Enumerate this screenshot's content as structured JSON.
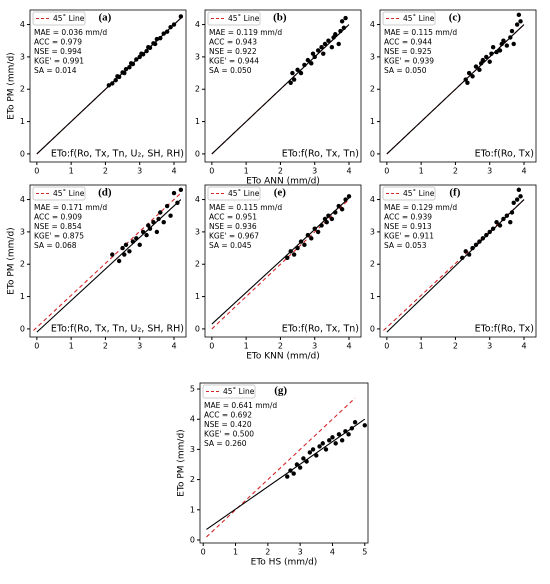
{
  "chart_data": [
    {
      "type": "scatter",
      "title": "(a)",
      "y_label": "ETo PM (mm/d)",
      "formula": "ETo:f(Ro, Tx, Tn, U₂, SH, RH)",
      "stats": [
        "MAE = 0.036 mm/d",
        "ACC = 0.979",
        "NSE = 0.994",
        "KGE' = 0.991",
        "SA = 0.014"
      ],
      "xlim": [
        -0.2,
        4.35
      ],
      "ylim": [
        -0.25,
        4.45
      ],
      "xticks": [
        0,
        1,
        2,
        3,
        4
      ],
      "yticks": [
        0,
        1,
        2,
        3,
        4
      ],
      "x": [
        2.1,
        2.2,
        2.3,
        2.35,
        2.4,
        2.5,
        2.55,
        2.6,
        2.7,
        2.75,
        2.8,
        2.9,
        3.0,
        3.05,
        3.1,
        3.2,
        3.25,
        3.3,
        3.4,
        3.45,
        3.5,
        3.6,
        3.7,
        3.8,
        3.9,
        4.0,
        4.2
      ],
      "y": [
        2.12,
        2.18,
        2.28,
        2.4,
        2.38,
        2.52,
        2.5,
        2.62,
        2.68,
        2.8,
        2.78,
        2.92,
        3.0,
        3.1,
        3.08,
        3.18,
        3.3,
        3.28,
        3.42,
        3.4,
        3.55,
        3.58,
        3.72,
        3.78,
        3.92,
        4.0,
        4.25
      ],
      "reference_line": {
        "name": "45˚ Line",
        "color": "#d62728",
        "x": [
          0,
          4.2
        ],
        "y": [
          0,
          4.2
        ]
      },
      "fit_line": {
        "color": "#000000",
        "x": [
          0,
          4.2
        ],
        "y": [
          0,
          4.2
        ]
      }
    },
    {
      "type": "scatter",
      "title": "(b)",
      "x_label": "ETo ANN (mm/d)",
      "formula": "ETo:f(Ro, Tx, Tn)",
      "stats": [
        "MAE = 0.119 mm/d",
        "ACC = 0.943",
        "NSE = 0.922",
        "KGE' = 0.944",
        "SA = 0.050"
      ],
      "xlim": [
        -0.2,
        4.35
      ],
      "ylim": [
        -0.25,
        4.45
      ],
      "xticks": [
        0,
        1,
        2,
        3,
        4
      ],
      "yticks": [
        0,
        1,
        2,
        3,
        4
      ],
      "x": [
        2.3,
        2.35,
        2.4,
        2.5,
        2.6,
        2.7,
        2.8,
        2.9,
        2.95,
        3.0,
        3.1,
        3.2,
        3.25,
        3.3,
        3.4,
        3.5,
        3.55,
        3.6,
        3.7,
        3.75,
        3.8,
        3.85,
        3.9
      ],
      "y": [
        2.2,
        2.5,
        2.3,
        2.6,
        2.5,
        2.75,
        2.9,
        2.8,
        3.1,
        3.0,
        3.2,
        3.3,
        3.1,
        3.4,
        3.5,
        3.3,
        3.6,
        3.7,
        3.4,
        3.8,
        4.1,
        3.9,
        4.2
      ],
      "reference_line": {
        "name": "45˚ Line",
        "color": "#d62728",
        "x": [
          0,
          4
        ],
        "y": [
          0,
          4
        ]
      },
      "fit_line": {
        "color": "#000000",
        "x": [
          0,
          4
        ],
        "y": [
          0,
          4
        ]
      }
    },
    {
      "type": "scatter",
      "title": "(c)",
      "formula": "ETo:f(Ro, Tx)",
      "stats": [
        "MAE = 0.115 mm/d",
        "ACC = 0.944",
        "NSE = 0.925",
        "KGE' = 0.939",
        "SA = 0.050"
      ],
      "xlim": [
        -0.2,
        4.35
      ],
      "ylim": [
        -0.25,
        4.45
      ],
      "xticks": [
        0,
        1,
        2,
        3,
        4
      ],
      "yticks": [
        0,
        1,
        2,
        3,
        4
      ],
      "x": [
        2.3,
        2.35,
        2.4,
        2.5,
        2.6,
        2.7,
        2.75,
        2.8,
        2.9,
        3.0,
        3.05,
        3.1,
        3.2,
        3.3,
        3.35,
        3.4,
        3.5,
        3.6,
        3.65,
        3.7,
        3.8,
        3.85,
        3.9
      ],
      "y": [
        2.3,
        2.2,
        2.5,
        2.4,
        2.7,
        2.6,
        2.8,
        2.9,
        3.0,
        2.85,
        3.1,
        3.3,
        3.15,
        3.2,
        3.4,
        3.5,
        3.35,
        3.6,
        3.8,
        3.4,
        4.0,
        4.3,
        4.1
      ],
      "reference_line": {
        "name": "45˚ Line",
        "color": "#d62728",
        "x": [
          0,
          4
        ],
        "y": [
          0,
          4
        ]
      },
      "fit_line": {
        "color": "#000000",
        "x": [
          0,
          4
        ],
        "y": [
          0,
          4
        ]
      }
    },
    {
      "type": "scatter",
      "title": "(d)",
      "y_label": "ETo PM (mm/d)",
      "formula": "ETo:f(Ro, Tx, Tn, U₂, SH, RH)",
      "stats": [
        "MAE = 0.171 mm/d",
        "ACC = 0.909",
        "NSE = 0.854",
        "KGE' = 0.875",
        "SA = 0.068"
      ],
      "xlim": [
        -0.2,
        4.35
      ],
      "ylim": [
        -0.25,
        4.45
      ],
      "xticks": [
        0,
        1,
        2,
        3,
        4
      ],
      "yticks": [
        0,
        1,
        2,
        3,
        4
      ],
      "x": [
        2.2,
        2.4,
        2.5,
        2.55,
        2.6,
        2.7,
        2.8,
        2.9,
        3.0,
        3.1,
        3.2,
        3.25,
        3.3,
        3.4,
        3.5,
        3.55,
        3.6,
        3.7,
        3.8,
        3.9,
        4.0,
        4.1,
        4.2
      ],
      "y": [
        2.3,
        2.1,
        2.5,
        2.3,
        2.6,
        2.4,
        2.7,
        2.8,
        2.6,
        3.0,
        2.9,
        3.2,
        3.1,
        3.3,
        3.0,
        3.4,
        3.6,
        3.3,
        3.8,
        3.5,
        4.2,
        3.9,
        4.3
      ],
      "reference_line": {
        "name": "45˚ Line",
        "color": "#d62728",
        "x": [
          -0.1,
          4.2
        ],
        "y": [
          -0.05,
          4.2
        ]
      },
      "fit_line": {
        "color": "#000000",
        "x": [
          0,
          4.2
        ],
        "y": [
          -0.1,
          4.0
        ]
      }
    },
    {
      "type": "scatter",
      "title": "(e)",
      "x_label": "ETo KNN (mm/d)",
      "formula": "ETo:f(Ro, Tx, Tn)",
      "stats": [
        "MAE = 0.115 mm/d",
        "ACC = 0.951",
        "NSE = 0.936",
        "KGE' = 0.967",
        "SA = 0.045"
      ],
      "xlim": [
        -0.2,
        4.35
      ],
      "ylim": [
        -0.25,
        4.45
      ],
      "xticks": [
        0,
        1,
        2,
        3,
        4
      ],
      "yticks": [
        0,
        1,
        2,
        3,
        4
      ],
      "x": [
        2.2,
        2.3,
        2.4,
        2.5,
        2.6,
        2.7,
        2.8,
        2.9,
        3.0,
        3.1,
        3.2,
        3.3,
        3.35,
        3.4,
        3.5,
        3.6,
        3.7,
        3.8,
        3.9,
        4.0
      ],
      "y": [
        2.2,
        2.4,
        2.3,
        2.5,
        2.7,
        2.6,
        2.9,
        2.8,
        3.1,
        3.0,
        3.2,
        3.4,
        3.3,
        3.5,
        3.4,
        3.6,
        3.8,
        3.7,
        4.0,
        4.1
      ],
      "reference_line": {
        "name": "45˚ Line",
        "color": "#d62728",
        "x": [
          0,
          4
        ],
        "y": [
          0,
          4
        ]
      },
      "fit_line": {
        "color": "#000000",
        "x": [
          0,
          4
        ],
        "y": [
          0.15,
          4.05
        ]
      }
    },
    {
      "type": "scatter",
      "title": "(f)",
      "formula": "ETo:f(Ro, Tx)",
      "stats": [
        "MAE = 0.129 mm/d",
        "ACC = 0.939",
        "NSE = 0.913",
        "KGE' = 0.911",
        "SA = 0.053"
      ],
      "xlim": [
        -0.2,
        4.35
      ],
      "ylim": [
        -0.25,
        4.45
      ],
      "xticks": [
        0,
        1,
        2,
        3,
        4
      ],
      "yticks": [
        0,
        1,
        2,
        3,
        4
      ],
      "x": [
        2.2,
        2.3,
        2.4,
        2.5,
        2.6,
        2.7,
        2.8,
        2.9,
        3.0,
        3.1,
        3.2,
        3.3,
        3.4,
        3.5,
        3.6,
        3.65,
        3.7,
        3.8,
        3.85,
        3.9
      ],
      "y": [
        2.2,
        2.4,
        2.3,
        2.5,
        2.6,
        2.7,
        2.8,
        2.9,
        3.0,
        3.1,
        3.3,
        3.2,
        3.4,
        3.5,
        3.3,
        3.6,
        3.9,
        4.0,
        4.3,
        4.1
      ],
      "reference_line": {
        "name": "45˚ Line",
        "color": "#d62728",
        "x": [
          -0.1,
          4
        ],
        "y": [
          -0.05,
          4
        ]
      },
      "fit_line": {
        "color": "#000000",
        "x": [
          0,
          4
        ],
        "y": [
          -0.1,
          4.0
        ]
      }
    },
    {
      "type": "scatter",
      "title": "(g)",
      "x_label": "ETo HS (mm/d)",
      "y_label": "ETo PM (mm/d)",
      "stats": [
        "MAE = 0.641 mm/d",
        "ACC = 0.692",
        "NSE = 0.420",
        "KGE' = 0.500",
        "SA = 0.260"
      ],
      "xlim": [
        -0.1,
        5.1
      ],
      "ylim": [
        -0.1,
        5.2
      ],
      "xticks": [
        0,
        1,
        2,
        3,
        4,
        5
      ],
      "yticks": [
        0,
        1,
        2,
        3,
        4,
        5
      ],
      "x": [
        2.6,
        2.7,
        2.8,
        2.9,
        3.0,
        3.1,
        3.2,
        3.3,
        3.4,
        3.5,
        3.6,
        3.7,
        3.8,
        3.9,
        4.0,
        4.1,
        4.2,
        4.3,
        4.4,
        4.5,
        4.6,
        4.7,
        5.0
      ],
      "y": [
        2.1,
        2.3,
        2.2,
        2.5,
        2.4,
        2.7,
        2.6,
        2.9,
        3.0,
        2.8,
        3.1,
        3.2,
        3.0,
        3.3,
        3.4,
        3.2,
        3.5,
        3.3,
        3.6,
        3.5,
        3.7,
        3.9,
        3.8
      ],
      "reference_line": {
        "name": "45˚ Line",
        "color": "#d62728",
        "x": [
          0.1,
          4.7
        ],
        "y": [
          0.1,
          4.7
        ]
      },
      "fit_line": {
        "color": "#000000",
        "x": [
          0.1,
          5
        ],
        "y": [
          0.35,
          4.0
        ]
      }
    }
  ]
}
